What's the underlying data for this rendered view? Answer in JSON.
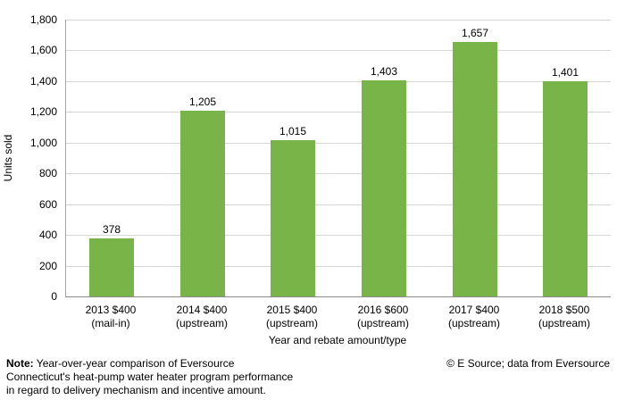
{
  "chart_data": {
    "type": "bar",
    "categories": [
      "2013 $400\n(mail-in)",
      "2014 $400\n(upstream)",
      "2015 $400\n(upstream)",
      "2016 $600\n(upstream)",
      "2017 $400\n(upstream)",
      "2018 $500\n(upstream)"
    ],
    "values": [
      378,
      1205,
      1015,
      1403,
      1657,
      1401
    ],
    "value_labels": [
      "378",
      "1,205",
      "1,015",
      "1,403",
      "1,657",
      "1,401"
    ],
    "title": "",
    "xlabel": "Year and rebate amount/type",
    "ylabel": "Units sold",
    "ylim": [
      0,
      1800
    ],
    "ytick_step": 200,
    "ytick_labels": [
      "0",
      "200",
      "400",
      "600",
      "800",
      "1,000",
      "1,200",
      "1,400",
      "1,600",
      "1,800"
    ],
    "grid": true,
    "legend": "none",
    "bar_color": "#78b447",
    "gridline_color": "#d6d6d6",
    "axis_color": "#a6a6a6"
  },
  "footer": {
    "note_label": "Note:",
    "note_text": " Year-over-year comparison of Eversource\nConnecticut's heat-pump water heater program performance\nin regard to delivery mechanism and incentive amount.",
    "copyright": "© E Source; data from Eversource"
  }
}
